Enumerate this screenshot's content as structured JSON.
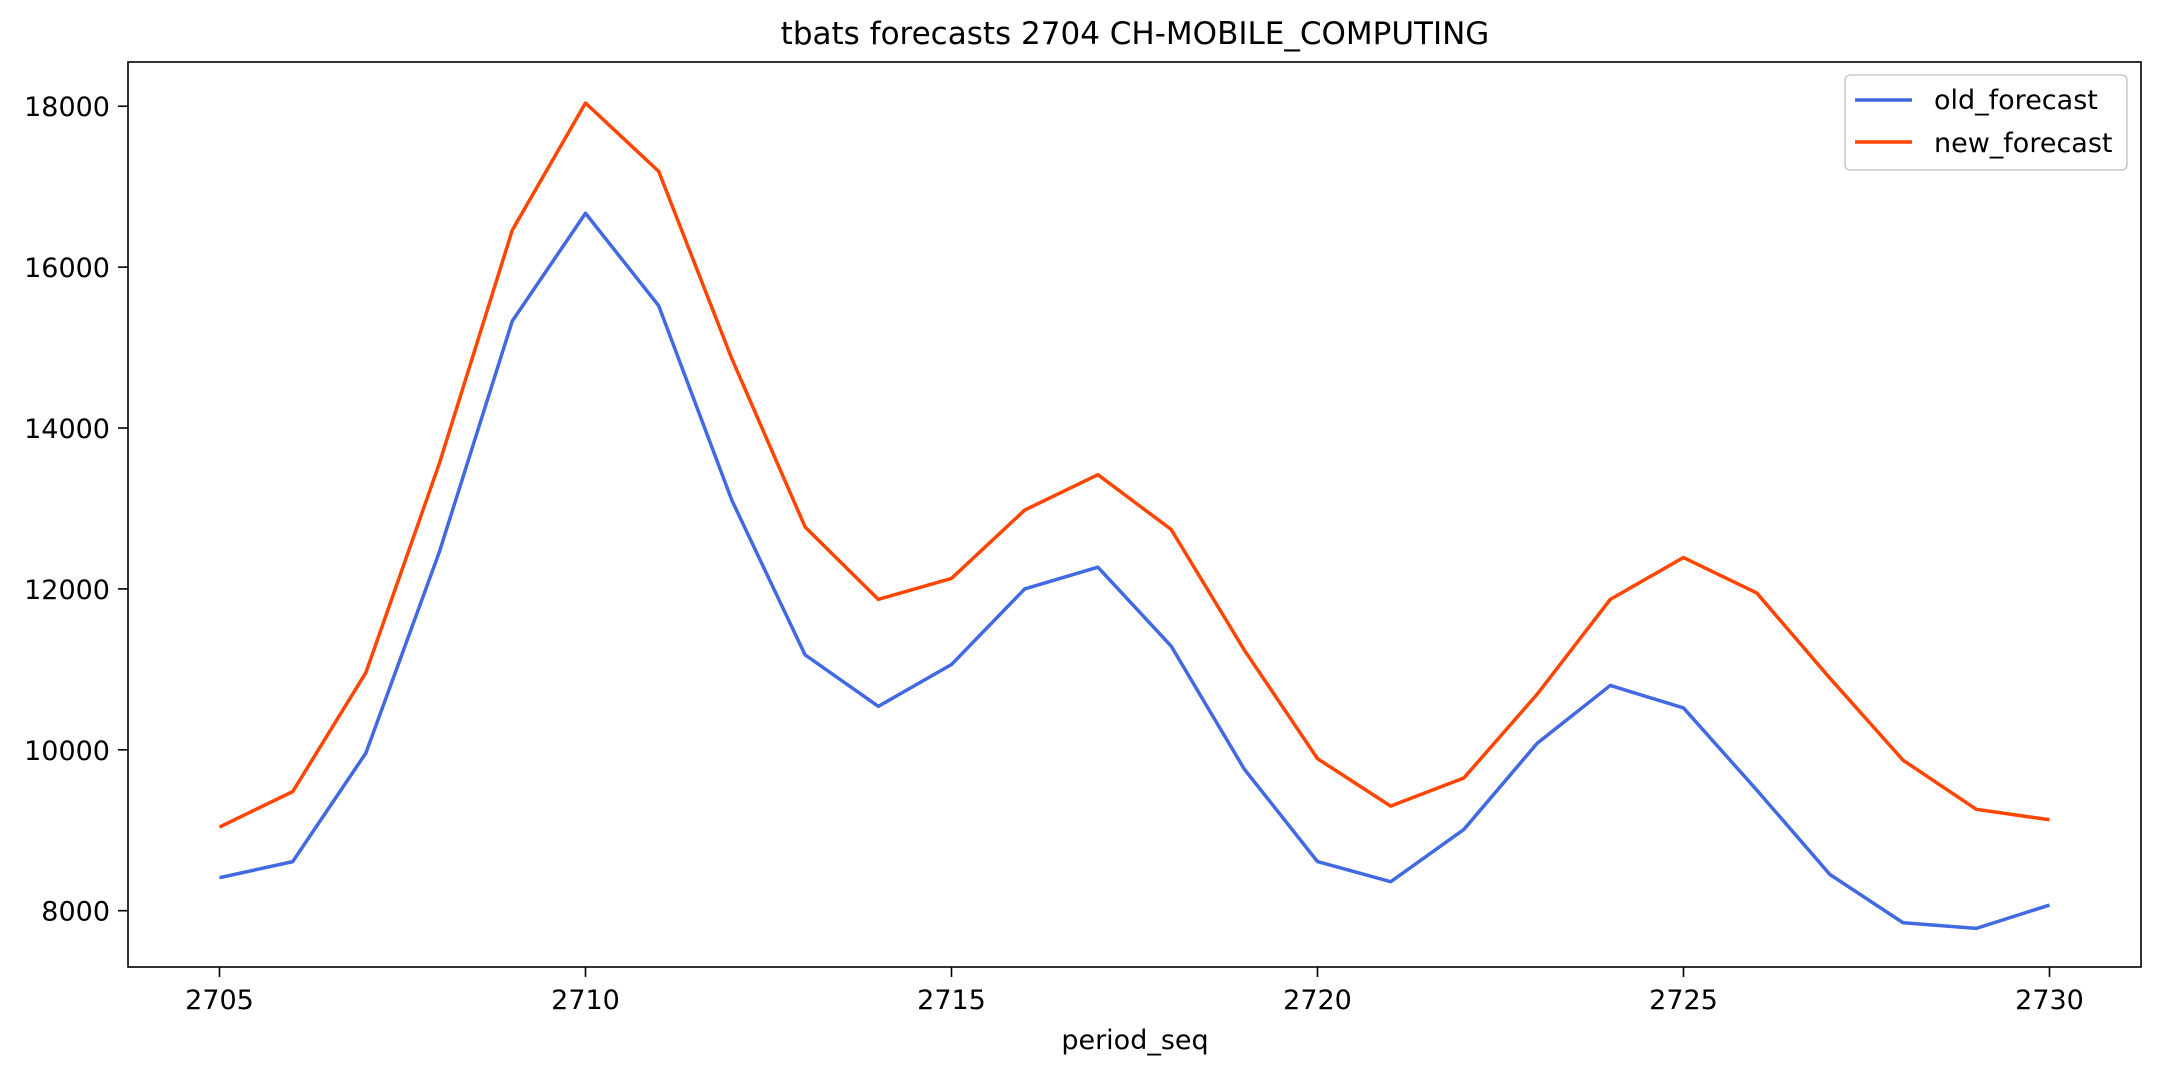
{
  "chart_data": {
    "type": "line",
    "title": "tbats forecasts 2704 CH-MOBILE_COMPUTING",
    "xlabel": "period_seq",
    "ylabel": "",
    "xlim": [
      2703.75,
      2731.25
    ],
    "ylim": [
      7300,
      18550
    ],
    "xticks": [
      2705,
      2710,
      2715,
      2720,
      2725,
      2730
    ],
    "yticks": [
      8000,
      10000,
      12000,
      14000,
      16000,
      18000
    ],
    "x": [
      2705,
      2706,
      2707,
      2708,
      2709,
      2710,
      2711,
      2712,
      2713,
      2714,
      2715,
      2716,
      2717,
      2718,
      2719,
      2720,
      2721,
      2722,
      2723,
      2724,
      2725,
      2726,
      2727,
      2728,
      2729,
      2730
    ],
    "grid": false,
    "legend_position": "top-right",
    "series": [
      {
        "name": "old_forecast",
        "color": "#4169e1",
        "values": [
          8410,
          8610,
          9960,
          12450,
          15330,
          16670,
          15520,
          13100,
          11180,
          10540,
          11060,
          12000,
          12270,
          11290,
          9760,
          8610,
          8360,
          9010,
          10080,
          10800,
          10520,
          9500,
          8450,
          7850,
          7780,
          8070
        ]
      },
      {
        "name": "new_forecast",
        "color": "#ff4500",
        "values": [
          9040,
          9480,
          10960,
          13550,
          16460,
          18040,
          17190,
          14860,
          12770,
          11870,
          12130,
          12980,
          13420,
          12740,
          11240,
          9890,
          9300,
          9650,
          10690,
          11870,
          12390,
          11950,
          10890,
          9870,
          9260,
          9130
        ]
      }
    ]
  }
}
